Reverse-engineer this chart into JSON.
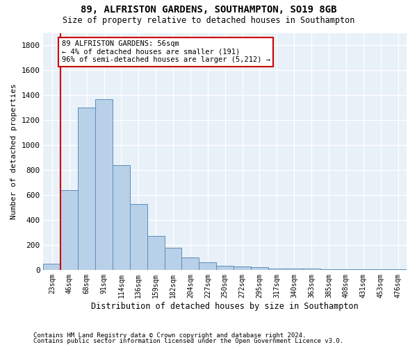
{
  "title_line1": "89, ALFRISTON GARDENS, SOUTHAMPTON, SO19 8GB",
  "title_line2": "Size of property relative to detached houses in Southampton",
  "xlabel": "Distribution of detached houses by size in Southampton",
  "ylabel": "Number of detached properties",
  "footnote1": "Contains HM Land Registry data © Crown copyright and database right 2024.",
  "footnote2": "Contains public sector information licensed under the Open Government Licence v3.0.",
  "categories": [
    "23sqm",
    "46sqm",
    "68sqm",
    "91sqm",
    "114sqm",
    "136sqm",
    "159sqm",
    "182sqm",
    "204sqm",
    "227sqm",
    "250sqm",
    "272sqm",
    "295sqm",
    "317sqm",
    "340sqm",
    "363sqm",
    "385sqm",
    "408sqm",
    "431sqm",
    "453sqm",
    "476sqm"
  ],
  "bar_values": [
    50,
    640,
    1300,
    1370,
    840,
    530,
    270,
    175,
    100,
    60,
    35,
    25,
    20,
    10,
    10,
    8,
    5,
    5,
    5,
    5,
    5
  ],
  "ylim_max": 1900,
  "yticks": [
    0,
    200,
    400,
    600,
    800,
    1000,
    1200,
    1400,
    1600,
    1800
  ],
  "bar_color": "#b8d0e8",
  "bar_edge_color": "#5b8db8",
  "vline_color": "#cc0000",
  "vline_xindex": 1.5,
  "annotation_text": "89 ALFRISTON GARDENS: 56sqm\n← 4% of detached houses are smaller (191)\n96% of semi-detached houses are larger (5,212) →",
  "annotation_box_edgecolor": "#cc0000",
  "bg_color": "#e8f0f8",
  "grid_color": "#ffffff"
}
